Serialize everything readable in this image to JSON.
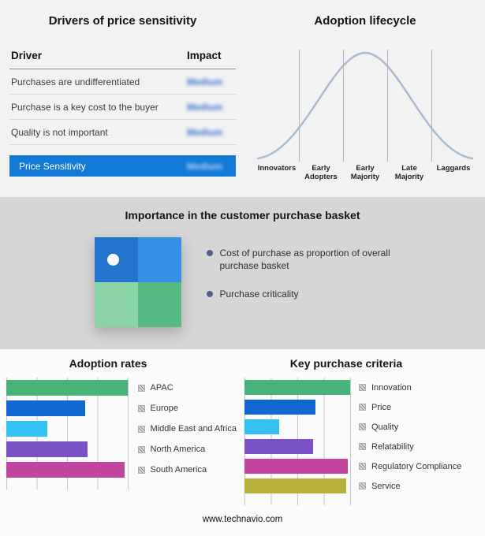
{
  "page": {
    "footer_url": "www.technavio.com"
  },
  "drivers_panel": {
    "title": "Drivers of price sensitivity",
    "table": {
      "headers": {
        "driver": "Driver",
        "impact": "Impact"
      },
      "rows": [
        {
          "driver": "Purchases are undifferentiated",
          "impact": "Medium"
        },
        {
          "driver": "Purchase is a key cost to the buyer",
          "impact": "Medium"
        },
        {
          "driver": "Quality is not important",
          "impact": "Medium"
        }
      ],
      "summary": {
        "label": "Price Sensitivity",
        "impact": "Medium"
      }
    },
    "accent_color": "#1279d7"
  },
  "lifecycle_panel": {
    "title": "Adoption lifecycle",
    "stages": [
      "Innovators",
      "Early Adopters",
      "Early Majority",
      "Late Majority",
      "Laggards"
    ],
    "curve_color": "#a9bacf"
  },
  "basket_panel": {
    "title": "Importance in the customer purchase basket",
    "bullets": [
      "Cost of purchase as proportion of overall purchase basket",
      "Purchase criticality"
    ],
    "matrix_colors": {
      "top_left": "#2374cc",
      "top_right": "#3390e3",
      "bottom_left": "#8ad3a6",
      "bottom_right": "#55bb82"
    }
  },
  "chart_data": [
    {
      "type": "bar",
      "orientation": "horizontal",
      "title": "Adoption rates",
      "categories": [
        "APAC",
        "Europe",
        "Middle East and Africa",
        "North America",
        "South America"
      ],
      "values": [
        100,
        65,
        34,
        67,
        98
      ],
      "colors": [
        "#49b27b",
        "#1268d3",
        "#35c0f2",
        "#7a52c5",
        "#c2459f"
      ],
      "xlim": [
        0,
        100
      ],
      "grid": true,
      "legend_position": "right"
    },
    {
      "type": "bar",
      "orientation": "horizontal",
      "title": "Key purchase criteria",
      "categories": [
        "Innovation",
        "Price",
        "Quality",
        "Relatability",
        "Regulatory Compliance",
        "Service"
      ],
      "values": [
        100,
        67,
        33,
        65,
        98,
        96
      ],
      "colors": [
        "#49b27b",
        "#1268d3",
        "#35c0f2",
        "#7a52c5",
        "#c2459f",
        "#b5b13c"
      ],
      "xlim": [
        0,
        100
      ],
      "grid": true,
      "legend_position": "right"
    }
  ]
}
